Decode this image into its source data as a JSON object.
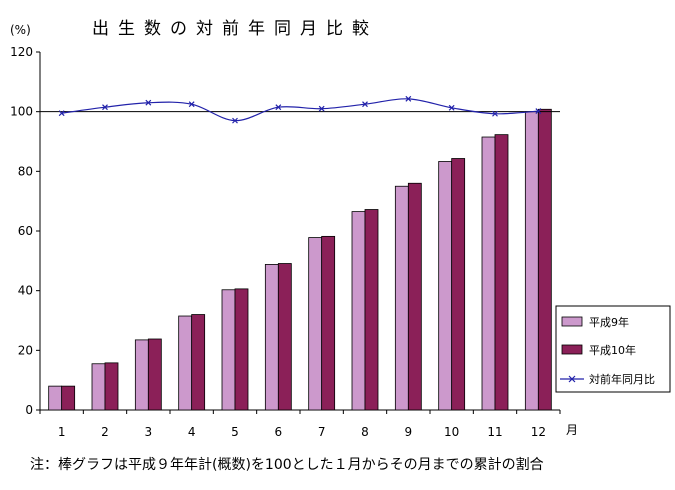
{
  "chart_data": {
    "type": "bar",
    "title": "出生数の対前年同月比較",
    "ylabel": "(%)",
    "xlabel": "月",
    "ylim": [
      0,
      120
    ],
    "yticks": [
      0,
      20,
      40,
      60,
      80,
      100,
      120
    ],
    "categories": [
      "1",
      "2",
      "3",
      "4",
      "5",
      "6",
      "7",
      "8",
      "9",
      "10",
      "11",
      "12"
    ],
    "series": [
      {
        "name": "平成9年",
        "kind": "bar",
        "color": "#cc99cc",
        "values": [
          8,
          15.5,
          23.5,
          31.5,
          40.3,
          48.8,
          57.8,
          66.5,
          75,
          83.3,
          91.5,
          100
        ]
      },
      {
        "name": "平成10年",
        "kind": "bar",
        "color": "#8b2058",
        "values": [
          8,
          15.8,
          23.8,
          32,
          40.6,
          49.1,
          58.2,
          67.2,
          76,
          84.3,
          92.3,
          100.8
        ]
      },
      {
        "name": "対前年同月比",
        "kind": "line",
        "color": "#2222aa",
        "values": [
          99.5,
          101.5,
          103,
          102.5,
          97,
          101.5,
          101,
          102.5,
          104.3,
          101.3,
          99.3,
          100.2
        ]
      }
    ],
    "reference_line": 100,
    "grid": false,
    "legend_position": "right"
  },
  "footnote": "注：棒グラフは平成９年年計(概数)を100とした１月からその月までの累計の割合"
}
